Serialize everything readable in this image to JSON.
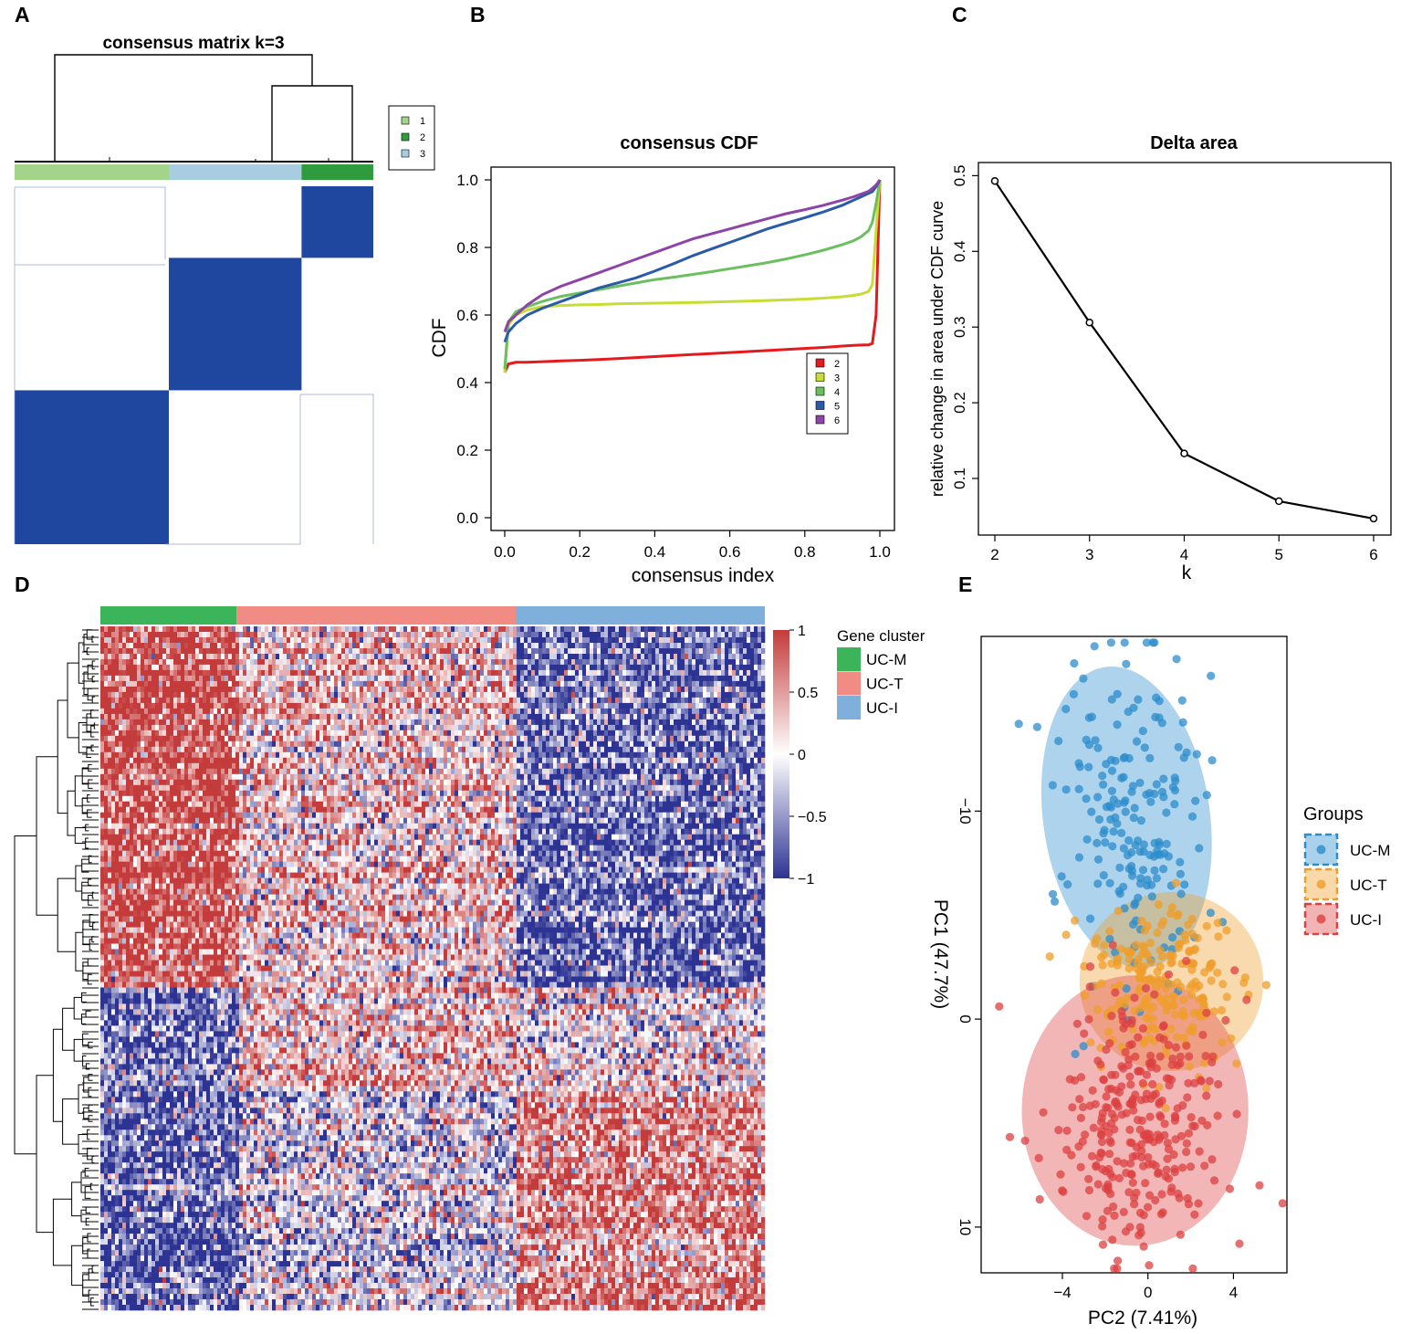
{
  "panels": {
    "A": {
      "letter": "A",
      "chart_data": {
        "type": "heatmap",
        "title": "consensus matrix k=3",
        "legend": [
          {
            "label": "1",
            "color": "#a3d48a"
          },
          {
            "label": "2",
            "color": "#2e9b3c"
          },
          {
            "label": "3",
            "color": "#a8cde0"
          }
        ],
        "cluster_order": [
          "1",
          "3",
          "2"
        ],
        "cluster_fraction": [
          0.43,
          0.37,
          0.2
        ],
        "block_color": "#1f47a0"
      }
    },
    "B": {
      "letter": "B",
      "chart_data": {
        "type": "line",
        "title": "consensus CDF",
        "xlabel": "consensus index",
        "ylabel": "CDF",
        "xlim": [
          0,
          1
        ],
        "ylim": [
          0,
          1
        ],
        "xticks": [
          "0.0",
          "0.2",
          "0.4",
          "0.6",
          "0.8",
          "1.0"
        ],
        "yticks": [
          "0.0",
          "0.2",
          "0.4",
          "0.6",
          "0.8",
          "1.0"
        ],
        "x": [
          0.0,
          0.01,
          0.03,
          0.06,
          0.1,
          0.15,
          0.2,
          0.25,
          0.3,
          0.35,
          0.4,
          0.45,
          0.5,
          0.55,
          0.6,
          0.65,
          0.7,
          0.75,
          0.8,
          0.85,
          0.9,
          0.93,
          0.95,
          0.97,
          0.98,
          0.99,
          1.0
        ],
        "series": [
          {
            "name": "2",
            "color": "#e41a1c",
            "values": [
              0.43,
              0.455,
              0.46,
              0.46,
              0.462,
              0.464,
              0.466,
              0.468,
              0.471,
              0.474,
              0.477,
              0.48,
              0.483,
              0.486,
              0.489,
              0.492,
              0.495,
              0.498,
              0.501,
              0.504,
              0.508,
              0.51,
              0.511,
              0.512,
              0.516,
              0.6,
              1.0
            ]
          },
          {
            "name": "3",
            "color": "#c7dd34",
            "values": [
              0.43,
              0.57,
              0.6,
              0.615,
              0.625,
              0.628,
              0.63,
              0.631,
              0.633,
              0.634,
              0.635,
              0.636,
              0.637,
              0.638,
              0.64,
              0.641,
              0.643,
              0.645,
              0.647,
              0.65,
              0.654,
              0.658,
              0.662,
              0.67,
              0.69,
              0.85,
              1.0
            ]
          },
          {
            "name": "4",
            "color": "#6abf5e",
            "values": [
              0.44,
              0.58,
              0.61,
              0.625,
              0.64,
              0.655,
              0.665,
              0.675,
              0.685,
              0.695,
              0.705,
              0.712,
              0.72,
              0.728,
              0.737,
              0.746,
              0.755,
              0.766,
              0.778,
              0.792,
              0.808,
              0.82,
              0.832,
              0.85,
              0.875,
              0.93,
              1.0
            ]
          },
          {
            "name": "5",
            "color": "#2b5ba8",
            "values": [
              0.52,
              0.55,
              0.575,
              0.6,
              0.62,
              0.64,
              0.66,
              0.68,
              0.695,
              0.71,
              0.73,
              0.752,
              0.775,
              0.795,
              0.815,
              0.835,
              0.855,
              0.872,
              0.888,
              0.905,
              0.925,
              0.94,
              0.95,
              0.96,
              0.965,
              0.98,
              1.0
            ]
          },
          {
            "name": "6",
            "color": "#8e44a6",
            "values": [
              0.55,
              0.58,
              0.6,
              0.63,
              0.66,
              0.685,
              0.705,
              0.725,
              0.745,
              0.765,
              0.785,
              0.805,
              0.825,
              0.84,
              0.855,
              0.87,
              0.885,
              0.9,
              0.912,
              0.925,
              0.94,
              0.95,
              0.958,
              0.966,
              0.975,
              0.985,
              1.0
            ]
          }
        ],
        "legend": "bottom-right"
      }
    },
    "C": {
      "letter": "C",
      "chart_data": {
        "type": "line",
        "title": "Delta area",
        "xlabel": "k",
        "ylabel": "relative change in area under CDF curve",
        "x": [
          2,
          3,
          4,
          5,
          6
        ],
        "values": [
          0.493,
          0.306,
          0.133,
          0.07,
          0.047
        ],
        "xlim": [
          2,
          6
        ],
        "ylim": [
          0.04,
          0.52
        ],
        "xticks": [
          "2",
          "3",
          "4",
          "5",
          "6"
        ],
        "yticks": [
          "0.1",
          "0.2",
          "0.3",
          "0.4",
          "0.5"
        ]
      }
    },
    "D": {
      "letter": "D",
      "chart_data": {
        "type": "heatmap",
        "legend_title": "Gene cluster",
        "groups": [
          {
            "name": "UC-M",
            "color": "#3cb55a",
            "fraction": 0.205
          },
          {
            "name": "UC-T",
            "color": "#f08c84",
            "fraction": 0.42
          },
          {
            "name": "UC-I",
            "color": "#7fb0dc",
            "fraction": 0.375
          }
        ],
        "colorbar_ticks": [
          "1",
          "0.5",
          "0",
          "−0.5",
          "−1"
        ],
        "colorbar_range": [
          -1,
          1
        ],
        "colors": {
          "high": "#c33b3a",
          "mid": "#ffffff",
          "low": "#2d3393"
        },
        "row_blocks": [
          {
            "fraction": 0.53,
            "mean": [
              0.85,
              0.15,
              -0.75
            ]
          },
          {
            "fraction": 0.15,
            "mean": [
              -0.6,
              0.35,
              0.1
            ]
          },
          {
            "fraction": 0.32,
            "mean": [
              -0.75,
              -0.2,
              0.55
            ]
          }
        ]
      }
    },
    "E": {
      "letter": "E",
      "chart_data": {
        "type": "scatter",
        "xlabel": "PC2 (7.41%)",
        "ylabel": "PC1 (47.7%)",
        "xlim": [
          -7.8,
          6.5
        ],
        "ylim": [
          12.2,
          -18.4
        ],
        "xticks": [
          {
            "v": -4,
            "label": "−4"
          },
          {
            "v": 0,
            "label": "0"
          },
          {
            "v": 4,
            "label": "4"
          }
        ],
        "yticks": [
          {
            "v": -10,
            "label": "−10"
          },
          {
            "v": 0,
            "label": "0"
          },
          {
            "v": 10,
            "label": "10"
          }
        ],
        "legend_title": "Groups",
        "series": [
          {
            "name": "UC-M",
            "color": "#2b8ccc",
            "n": 190,
            "center": [
              -0.9,
              -9.8
            ],
            "spread": [
              1.7,
              4.2
            ],
            "ellipse": {
              "cx": -1.0,
              "cy": -9.7,
              "rx": 3.9,
              "ry": 7.3
            }
          },
          {
            "name": "UC-T",
            "color": "#ef9e2b",
            "n": 210,
            "center": [
              0.9,
              -1.8
            ],
            "spread": [
              1.9,
              2.1
            ],
            "ellipse": {
              "cx": 1.1,
              "cy": -1.8,
              "rx": 4.3,
              "ry": 4.3
            }
          },
          {
            "name": "UC-I",
            "color": "#dc4040",
            "n": 300,
            "center": [
              -0.5,
              5.0
            ],
            "spread": [
              2.0,
              3.1
            ],
            "ellipse": {
              "cx": -0.6,
              "cy": 4.4,
              "rx": 5.3,
              "ry": 6.5
            }
          }
        ]
      }
    }
  }
}
